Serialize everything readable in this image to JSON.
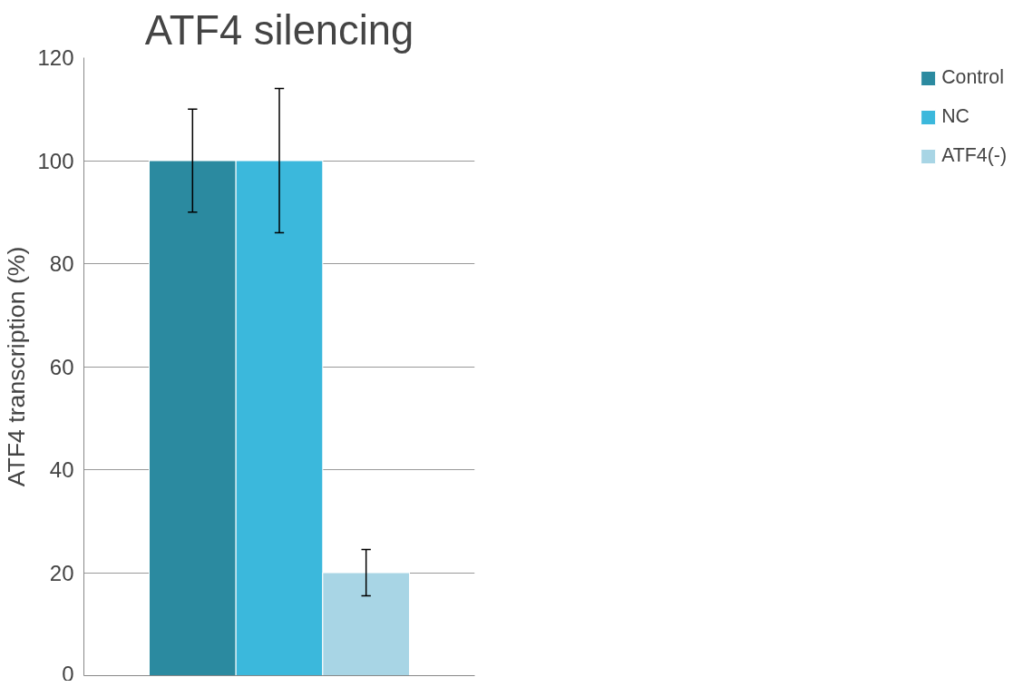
{
  "chart_data": {
    "type": "bar",
    "title": "ATF4 silencing",
    "ylabel": "ATF4 transcription (%)",
    "categories": [
      null
    ],
    "series": [
      {
        "name": "Control",
        "color": "#2b8aa0",
        "values": [
          100
        ],
        "errors": [
          [
            90,
            110
          ]
        ]
      },
      {
        "name": "NC",
        "color": "#3bb8dc",
        "values": [
          100
        ],
        "errors": [
          [
            86,
            114
          ]
        ]
      },
      {
        "name": "ATF4(-)",
        "color": "#a8d5e5",
        "values": [
          20
        ],
        "errors": [
          [
            15.5,
            24.5
          ]
        ]
      }
    ],
    "ylim": [
      0,
      120
    ],
    "yticks": [
      0,
      20,
      40,
      60,
      80,
      100,
      120
    ],
    "grid": "y",
    "legend": "right"
  }
}
